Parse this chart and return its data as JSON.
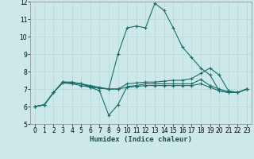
{
  "title": "",
  "xlabel": "Humidex (Indice chaleur)",
  "ylabel": "",
  "background_color": "#cde8e8",
  "grid_color": "#b8d8d8",
  "line_color": "#1a6e6a",
  "xlim": [
    -0.5,
    23.5
  ],
  "ylim": [
    5,
    12
  ],
  "xticks": [
    0,
    1,
    2,
    3,
    4,
    5,
    6,
    7,
    8,
    9,
    10,
    11,
    12,
    13,
    14,
    15,
    16,
    17,
    18,
    19,
    20,
    21,
    22,
    23
  ],
  "yticks": [
    5,
    6,
    7,
    8,
    9,
    10,
    11,
    12
  ],
  "series": [
    {
      "x": [
        0,
        1,
        2,
        3,
        4,
        5,
        6,
        7,
        8,
        9,
        10,
        11,
        12,
        13,
        14,
        15,
        16,
        17,
        18,
        19,
        20,
        21,
        22,
        23
      ],
      "y": [
        6.0,
        6.1,
        6.8,
        7.4,
        7.4,
        7.3,
        7.2,
        7.1,
        7.0,
        9.0,
        10.5,
        10.6,
        10.5,
        11.9,
        11.5,
        10.5,
        9.4,
        8.8,
        8.2,
        7.8,
        6.9,
        6.8,
        6.8,
        7.0
      ]
    },
    {
      "x": [
        0,
        1,
        2,
        3,
        4,
        5,
        6,
        7,
        8,
        9,
        10,
        11,
        12,
        13,
        14,
        15,
        16,
        17,
        18,
        19,
        20,
        21,
        22,
        23
      ],
      "y": [
        6.0,
        6.1,
        6.8,
        7.4,
        7.35,
        7.3,
        7.1,
        7.05,
        7.0,
        7.0,
        7.3,
        7.35,
        7.4,
        7.4,
        7.45,
        7.5,
        7.5,
        7.6,
        7.9,
        8.2,
        7.8,
        6.9,
        6.8,
        7.0
      ]
    },
    {
      "x": [
        0,
        1,
        2,
        3,
        4,
        5,
        6,
        7,
        8,
        9,
        10,
        11,
        12,
        13,
        14,
        15,
        16,
        17,
        18,
        19,
        20,
        21,
        22,
        23
      ],
      "y": [
        6.0,
        6.1,
        6.8,
        7.4,
        7.35,
        7.3,
        7.15,
        7.05,
        7.0,
        7.0,
        7.1,
        7.15,
        7.2,
        7.2,
        7.2,
        7.2,
        7.2,
        7.2,
        7.3,
        7.1,
        6.9,
        6.8,
        6.8,
        7.0
      ]
    },
    {
      "x": [
        0,
        1,
        2,
        3,
        4,
        5,
        6,
        7,
        8,
        9,
        10,
        11,
        12,
        13,
        14,
        15,
        16,
        17,
        18,
        19,
        20,
        21,
        22,
        23
      ],
      "y": [
        6.0,
        6.1,
        6.8,
        7.35,
        7.3,
        7.2,
        7.1,
        6.9,
        5.5,
        6.1,
        7.15,
        7.2,
        7.3,
        7.3,
        7.3,
        7.3,
        7.3,
        7.3,
        7.55,
        7.2,
        7.0,
        6.85,
        6.8,
        7.0
      ]
    }
  ]
}
